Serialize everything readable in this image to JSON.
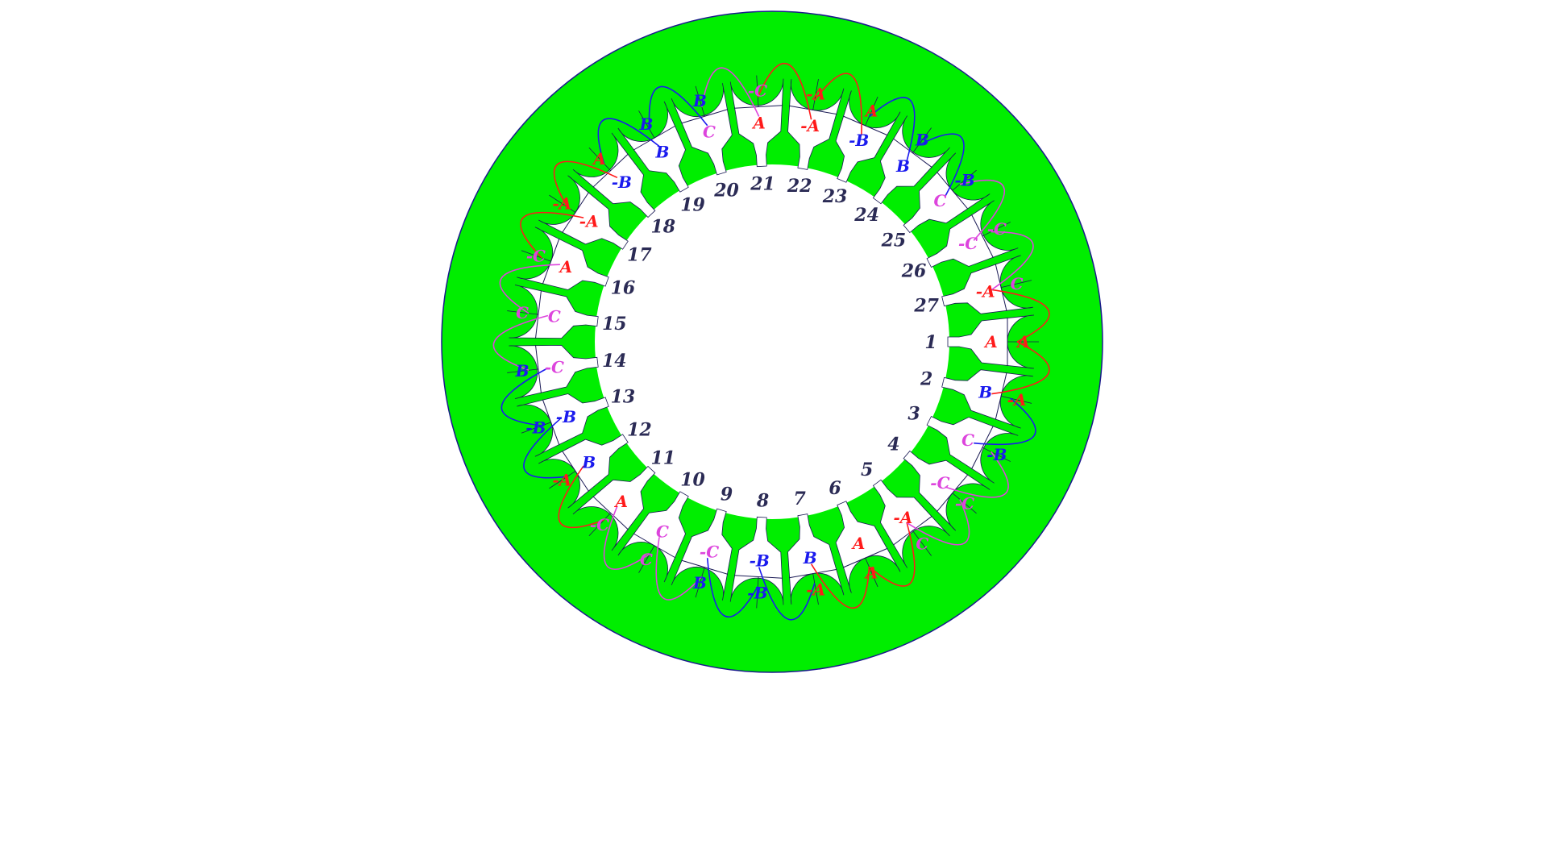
{
  "diagram": {
    "slot_count": 27,
    "colors": {
      "core": "#00ee00",
      "core_outline": "#1a1a8c",
      "slot_fill": "#ffffff",
      "divider": "#1a1a55",
      "phase_A": "#ff1a1a",
      "phase_B": "#1a1aee",
      "phase_C": "#dd44dd",
      "slot_number": "#2b2b55"
    },
    "slots": [
      {
        "number": "1",
        "outer": "A",
        "inner": "A"
      },
      {
        "number": "2",
        "outer": "-A",
        "inner": "B"
      },
      {
        "number": "3",
        "outer": "-B",
        "inner": "C"
      },
      {
        "number": "4",
        "outer": "-C",
        "inner": "-C"
      },
      {
        "number": "5",
        "outer": "C",
        "inner": "-A"
      },
      {
        "number": "6",
        "outer": "A",
        "inner": "A"
      },
      {
        "number": "7",
        "outer": "-A",
        "inner": "B"
      },
      {
        "number": "8",
        "outer": "-B",
        "inner": "-B"
      },
      {
        "number": "9",
        "outer": "B",
        "inner": "-C"
      },
      {
        "number": "10",
        "outer": "C",
        "inner": "C"
      },
      {
        "number": "11",
        "outer": "-C",
        "inner": "A"
      },
      {
        "number": "12",
        "outer": "-A",
        "inner": "B"
      },
      {
        "number": "13",
        "outer": "-B",
        "inner": "-B"
      },
      {
        "number": "14",
        "outer": "B",
        "inner": "-C"
      },
      {
        "number": "15",
        "outer": "C",
        "inner": "C"
      },
      {
        "number": "16",
        "outer": "-C",
        "inner": "A"
      },
      {
        "number": "17",
        "outer": "-A",
        "inner": "-A"
      },
      {
        "number": "18",
        "outer": "A",
        "inner": "-B"
      },
      {
        "number": "19",
        "outer": "B",
        "inner": "B"
      },
      {
        "number": "20",
        "outer": "B",
        "inner": "C"
      },
      {
        "number": "21",
        "outer": "-C",
        "inner": "A"
      },
      {
        "number": "22",
        "outer": "-A",
        "inner": "-A"
      },
      {
        "number": "23",
        "outer": "A",
        "inner": "-B"
      },
      {
        "number": "24",
        "outer": "B",
        "inner": "B"
      },
      {
        "number": "25",
        "outer": "-B",
        "inner": "C"
      },
      {
        "number": "26",
        "outer": "-C",
        "inner": "-C"
      },
      {
        "number": "27",
        "outer": "C",
        "inner": "-A"
      }
    ],
    "connections": [
      {
        "phase": "A",
        "from": 1,
        "to": 27
      },
      {
        "phase": "A",
        "from": 1,
        "to": 2
      },
      {
        "phase": "A",
        "from": 6,
        "to": 5
      },
      {
        "phase": "A",
        "from": 6,
        "to": 7
      },
      {
        "phase": "A",
        "from": 11,
        "to": 12
      },
      {
        "phase": "A",
        "from": 16,
        "to": 17
      },
      {
        "phase": "A",
        "from": 17,
        "to": 18
      },
      {
        "phase": "A",
        "from": 21,
        "to": 22
      },
      {
        "phase": "A",
        "from": 22,
        "to": 23
      },
      {
        "phase": "B",
        "from": 2,
        "to": 3
      },
      {
        "phase": "B",
        "from": 7,
        "to": 8
      },
      {
        "phase": "B",
        "from": 8,
        "to": 9
      },
      {
        "phase": "B",
        "from": 12,
        "to": 13
      },
      {
        "phase": "B",
        "from": 13,
        "to": 14
      },
      {
        "phase": "B",
        "from": 18,
        "to": 19
      },
      {
        "phase": "B",
        "from": 19,
        "to": 20
      },
      {
        "phase": "B",
        "from": 23,
        "to": 24
      },
      {
        "phase": "B",
        "from": 24,
        "to": 25
      },
      {
        "phase": "C",
        "from": 3,
        "to": 4
      },
      {
        "phase": "C",
        "from": 4,
        "to": 5
      },
      {
        "phase": "C",
        "from": 9,
        "to": 10
      },
      {
        "phase": "C",
        "from": 10,
        "to": 11
      },
      {
        "phase": "C",
        "from": 14,
        "to": 15
      },
      {
        "phase": "C",
        "from": 15,
        "to": 16
      },
      {
        "phase": "C",
        "from": 20,
        "to": 21
      },
      {
        "phase": "C",
        "from": 25,
        "to": 26
      },
      {
        "phase": "C",
        "from": 26,
        "to": 27
      }
    ]
  }
}
